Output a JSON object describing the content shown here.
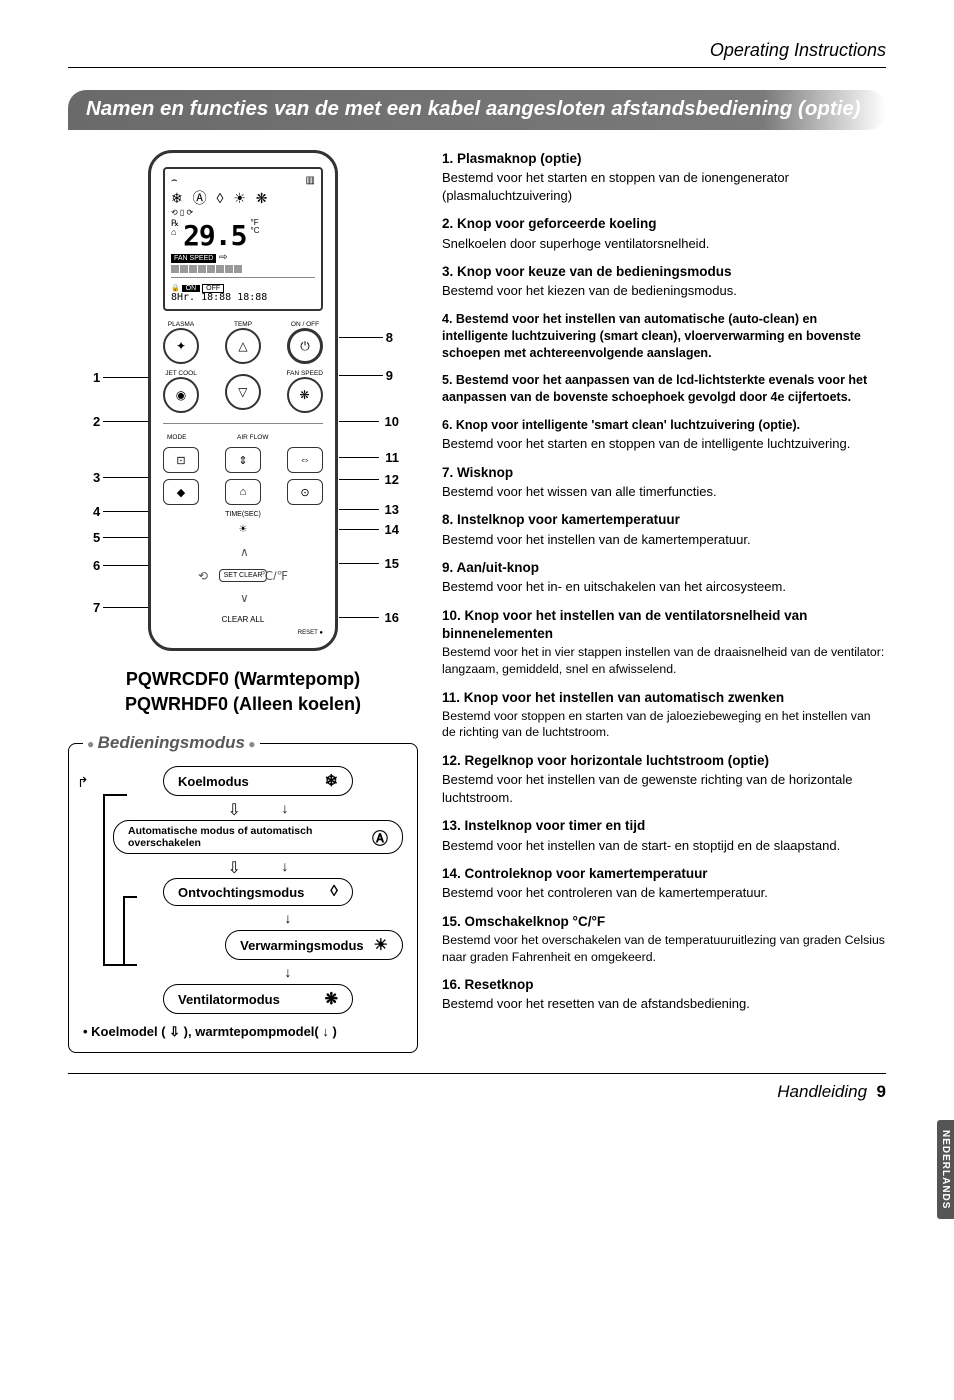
{
  "header_right": "Operating Instructions",
  "title_bar": "Namen en functies van de met een kabel aangesloten afstandsbediening (optie)",
  "remote": {
    "lcd": {
      "icons_top": "❄ Ⓐ ◊ ☀ ❋",
      "temp": "29.5",
      "temp_unit_f": "°F",
      "temp_unit_c": "°C",
      "fan_speed_label": "FAN SPEED",
      "on": "ON",
      "off": "OFF",
      "timer": "8Hr. 18:88 18:88"
    },
    "labels": {
      "plasma": "PLASMA",
      "temp": "TEMP",
      "onoff": "ON / OFF",
      "jetcool": "JET COOL",
      "fanspeed": "FAN SPEED",
      "mode": "MODE",
      "airflow": "AIR FLOW",
      "setclear": "SET\nCLEAR",
      "clearall": "CLEAR ALL",
      "reset": "RESET",
      "timesec": "TIME(SEC)"
    },
    "callouts_left": [
      "1",
      "2",
      "3",
      "4",
      "5",
      "6",
      "7"
    ],
    "callouts_right": [
      "8",
      "9",
      "10",
      "11",
      "12",
      "13",
      "14",
      "15",
      "16"
    ]
  },
  "models": {
    "line1": "PQWRCDF0 (Warmtepomp)",
    "line2": "PQWRHDF0 (Alleen koelen)"
  },
  "mode_box": {
    "legend": "Bedieningsmodus",
    "items": [
      {
        "label": "Koelmodus",
        "icon": "❄"
      },
      {
        "label": "Automatische modus of automatisch overschakelen",
        "icon": "Ⓐ",
        "wide": true
      },
      {
        "label": "Ontvochtingsmodus",
        "icon": "◊"
      },
      {
        "label": "Verwarmingsmodus",
        "icon": "☀",
        "narrow": true
      },
      {
        "label": "Ventilatormodus",
        "icon": "❋"
      }
    ],
    "footer_prefix": "• Koelmodel ",
    "footer_mid": "( ⇩ ), ",
    "footer_suffix": "warmtepompmodel( ↓ )"
  },
  "items": [
    {
      "n": "1.",
      "title": "Plasmaknop (optie)",
      "desc": "Bestemd voor het starten en stoppen van de ionengenerator (plasmaluchtzuivering)"
    },
    {
      "n": "2.",
      "title": "Knop voor geforceerde koeling",
      "desc": "Snelkoelen door superhoge ventilatorsnelheid."
    },
    {
      "n": "3.",
      "title": "Knop voor keuze van de bedieningsmodus",
      "desc": "Bestemd voor het kiezen van de bedieningsmodus."
    },
    {
      "n": "4.",
      "title": "Bestemd voor het instellen van automatische (auto-clean) en intelligente luchtzuivering (smart clean), vloerverwarming en bovenste schoepen met achtereenvolgende aanslagen.",
      "small": true
    },
    {
      "n": "5.",
      "title": "Bestemd voor het aanpassen van de lcd-lichtsterkte evenals voor het aanpassen van de bovenste schoephoek gevolgd door 4e cijfertoets.",
      "small": true
    },
    {
      "n": "6.",
      "title": "Knop voor intelligente 'smart clean' luchtzuivering (optie).",
      "desc": "Bestemd voor het starten en stoppen van de intelligente luchtzuivering.",
      "small_title": true
    },
    {
      "n": "7.",
      "title": "Wisknop",
      "desc": "Bestemd voor het wissen van alle timerfuncties."
    },
    {
      "n": "8.",
      "title": "Instelknop voor kamertemperatuur",
      "desc": "Bestemd voor het instellen van de kamertemperatuur."
    },
    {
      "n": "9.",
      "title": "Aan/uit-knop",
      "desc": "Bestemd voor het in- en uitschakelen van het aircosysteem."
    },
    {
      "n": "10.",
      "title": "Knop voor het instellen van de ventilatorsnelheid van binnenelementen",
      "desc": "Bestemd voor het in vier stappen instellen van de draaisnelheid van de ventilator: langzaam, gemiddeld, snel en afwisselend.",
      "small_desc": true
    },
    {
      "n": "11.",
      "title": "Knop voor het instellen van automatisch zwenken",
      "desc": "Bestemd voor stoppen en starten van de jaloeziebeweging en het instellen van de richting van de luchtstroom.",
      "small_desc": true
    },
    {
      "n": "12.",
      "title": "Regelknop voor horizontale luchtstroom (optie)",
      "desc": "Bestemd voor het instellen van de gewenste richting van de horizontale luchtstroom."
    },
    {
      "n": "13.",
      "title": "Instelknop voor timer en tijd",
      "desc": "Bestemd voor het instellen van de start- en stoptijd en de slaapstand."
    },
    {
      "n": "14.",
      "title": "Controleknop voor kamertemperatuur",
      "desc": "Bestemd voor het controleren van de kamertemperatuur."
    },
    {
      "n": "15.",
      "title": "Omschakelknop °C/°F",
      "desc": "Bestemd voor het overschakelen van de temperatuuruitlezing van graden Celsius naar graden Fahrenheit en omgekeerd.",
      "small_desc": true
    },
    {
      "n": "16.",
      "title": "Resetknop",
      "desc": "Bestemd voor het resetten van de afstandsbediening."
    }
  ],
  "side_tab": "NEDERLANDS",
  "footer": {
    "text": "Handleiding",
    "page": "9"
  },
  "colors": {
    "titlebar_bg": "#6a6a6a",
    "text": "#000000",
    "legend": "#595959"
  }
}
